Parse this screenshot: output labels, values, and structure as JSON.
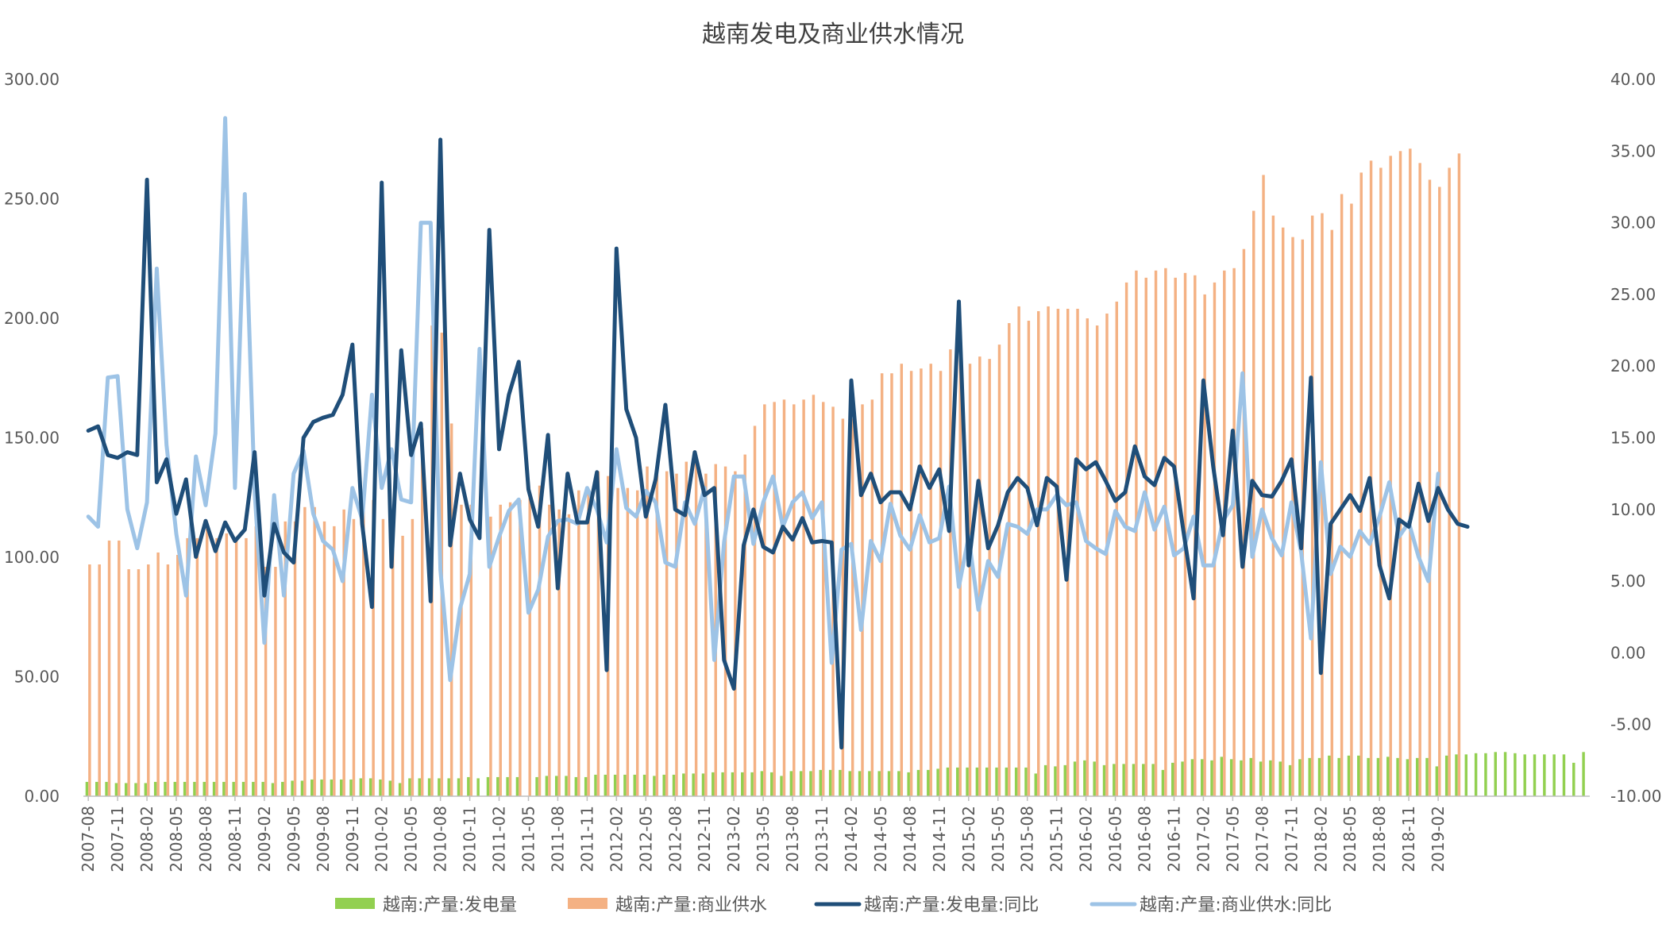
{
  "chart_data": {
    "type": "bar+line",
    "title": "越南发电及商业供水情况",
    "xlabel": "",
    "ylabel_left": "",
    "ylabel_right": "",
    "y_left_lim": [
      0,
      300
    ],
    "y_right_lim": [
      -10,
      40
    ],
    "y_left_ticks": [
      "0.00",
      "50.00",
      "100.00",
      "150.00",
      "200.00",
      "250.00",
      "300.00"
    ],
    "y_right_ticks": [
      "-10.00",
      "-5.00",
      "0.00",
      "5.00",
      "10.00",
      "15.00",
      "20.00",
      "25.00",
      "30.00",
      "35.00",
      "40.00"
    ],
    "x_tick_labels": [
      "2007-08",
      "2007-11",
      "2008-02",
      "2008-05",
      "2008-08",
      "2008-11",
      "2009-02",
      "2009-05",
      "2009-08",
      "2009-11",
      "2010-02",
      "2010-05",
      "2010-08",
      "2010-11",
      "2011-02",
      "2011-05",
      "2011-08",
      "2011-11",
      "2012-02",
      "2012-05",
      "2012-08",
      "2012-11",
      "2013-02",
      "2013-05",
      "2013-08",
      "2013-11",
      "2014-02",
      "2014-05",
      "2014-08",
      "2014-11",
      "2015-02",
      "2015-05",
      "2015-08",
      "2015-11",
      "2016-02",
      "2016-05",
      "2016-08",
      "2016-11",
      "2017-02",
      "2017-05",
      "2017-08",
      "2017-11",
      "2018-02",
      "2018-05",
      "2018-08",
      "2018-11",
      "2019-02"
    ],
    "grid": false,
    "legend_position": "bottom",
    "series": [
      {
        "name": "越南:产量:发电量",
        "type": "bar",
        "axis": "left",
        "color": "#92d050",
        "values": [
          6,
          6,
          6,
          5.5,
          5.5,
          5.5,
          5.5,
          6,
          6,
          6,
          6,
          6,
          6,
          6,
          6,
          6,
          6,
          6,
          6,
          5.5,
          6,
          6.5,
          6.5,
          7,
          7,
          7,
          7,
          7,
          7.5,
          7.5,
          7,
          6.5,
          5.5,
          7.5,
          7.5,
          7.5,
          7.5,
          7.5,
          7.5,
          8,
          7.5,
          8,
          8,
          8,
          8,
          null,
          8,
          8.5,
          8.5,
          8.5,
          8,
          8,
          9,
          9,
          9,
          9,
          9,
          9,
          8.5,
          9,
          9,
          9.5,
          9.5,
          9.5,
          10,
          10,
          10,
          10,
          10,
          10.5,
          10,
          8.5,
          10.5,
          10.5,
          10.5,
          11,
          11,
          11,
          10.5,
          10.5,
          10.5,
          10.5,
          10.5,
          10.5,
          10,
          11,
          11,
          11.5,
          12,
          12,
          12,
          12,
          12,
          12,
          12,
          12,
          12,
          9.5,
          13,
          12.5,
          13,
          14.5,
          15,
          14.5,
          13,
          13.5,
          13.5,
          13.5,
          13.5,
          13.5,
          11,
          14,
          14.5,
          15.5,
          15.5,
          15,
          16.5,
          15.5,
          15,
          16,
          14.5,
          15,
          14.5,
          13,
          15.5,
          16,
          16,
          17,
          16,
          17,
          17,
          16,
          16,
          16.5,
          16,
          15.5,
          16,
          16,
          12.5,
          17,
          17.5,
          17.5,
          18,
          18,
          18.5,
          18.5,
          18,
          17.5,
          17.5,
          17.5,
          17.5,
          17.5,
          14,
          18.5
        ]
      },
      {
        "name": "越南:产量:商业供水",
        "type": "bar",
        "axis": "left",
        "color": "#f4b183",
        "values": [
          97,
          97,
          107,
          107,
          95,
          95,
          97,
          102,
          97,
          101,
          108,
          108,
          112,
          108,
          110,
          108,
          108,
          113,
          96,
          96,
          115,
          115,
          121,
          121,
          115,
          113,
          120,
          116,
          124,
          124,
          116,
          109,
          109,
          116,
          154,
          197,
          194,
          156,
          122,
          122,
          null,
          117,
          122,
          123,
          124,
          125,
          130,
          122,
          120,
          118,
          128,
          128,
          136,
          134,
          129,
          129,
          128,
          138,
          135,
          136,
          135,
          140,
          140,
          135,
          139,
          138,
          136,
          143,
          155,
          164,
          165,
          166,
          164,
          166,
          168,
          165,
          163,
          158,
          158,
          164,
          166,
          177,
          177,
          181,
          178,
          179,
          181,
          178,
          187,
          191,
          181,
          184,
          183,
          189,
          198,
          205,
          199,
          203,
          205,
          204,
          204,
          204,
          200,
          197,
          202,
          207,
          215,
          220,
          217,
          220,
          221,
          217,
          219,
          218,
          210,
          215,
          220,
          221,
          229,
          245,
          260,
          243,
          238,
          234,
          233,
          243,
          244,
          237,
          252,
          248,
          261,
          266,
          263,
          268,
          270,
          271,
          265,
          258,
          255,
          263,
          269
        ]
      },
      {
        "name": "越南:产量:发电量:同比",
        "type": "line",
        "axis": "right",
        "color": "#1f4e79",
        "values": [
          15.5,
          15.8,
          13.8,
          13.6,
          14,
          13.8,
          33,
          11.9,
          13.5,
          9.7,
          12.1,
          6.7,
          9.2,
          7.1,
          9.1,
          7.8,
          8.6,
          14,
          4,
          9,
          7,
          6.3,
          15,
          16.1,
          16.4,
          16.6,
          18,
          21.5,
          9,
          3.2,
          32.8,
          6,
          21.1,
          13.8,
          16,
          3.6,
          35.8,
          7.5,
          12.5,
          9.3,
          8,
          29.5,
          14.2,
          18,
          20.3,
          11.4,
          8.8,
          15.2,
          4.5,
          12.5,
          9.1,
          9.1,
          12.6,
          -1.2,
          28.2,
          17,
          15,
          9.5,
          12.1,
          17.3,
          10,
          9.6,
          14,
          11,
          11.5,
          -0.5,
          -2.5,
          7.5,
          10,
          7.4,
          7,
          8.8,
          7.9,
          9.4,
          7.7,
          7.8,
          7.7,
          -6.6,
          19,
          11,
          12.5,
          10.5,
          11.2,
          11.2,
          10,
          13,
          11.5,
          12.8,
          8.5,
          24.5,
          6.1,
          12,
          7.3,
          8.9,
          11.2,
          12.2,
          11.5,
          8.9,
          12.2,
          11.6,
          5.1,
          13.5,
          12.8,
          13.3,
          12,
          10.6,
          11.2,
          14.4,
          12.3,
          11.7,
          13.6,
          13,
          8.3,
          3.8,
          19,
          13,
          8.2,
          15.5,
          6,
          12,
          11,
          10.9,
          12,
          13.5,
          7.3,
          19.2,
          -1.4,
          9,
          10,
          11,
          9.9,
          12.2,
          6.1,
          3.8,
          9.3,
          8.8,
          11.8,
          9.2,
          11.5,
          10,
          9,
          8.8
        ]
      },
      {
        "name": "越南:产量:商业供水:同比",
        "type": "line",
        "axis": "right",
        "color": "#9dc3e6",
        "values": [
          9.5,
          8.8,
          19.2,
          19.3,
          10,
          7.3,
          10.5,
          26.8,
          14.5,
          8.3,
          4,
          13.7,
          10.3,
          15.3,
          37.3,
          11.5,
          32,
          11.3,
          0.7,
          11,
          4,
          12.5,
          14.1,
          9.7,
          7.8,
          7.2,
          5,
          11.5,
          9.3,
          18,
          11.5,
          14.2,
          10.7,
          10.5,
          30,
          30,
          5.8,
          -1.9,
          3.1,
          5.5,
          21.2,
          6,
          8.1,
          9.9,
          10.7,
          2.8,
          4.4,
          8.1,
          9.2,
          9.3,
          9,
          11.5,
          10,
          7.7,
          14.2,
          10.1,
          9.5,
          11.3,
          10.5,
          6.3,
          6,
          10.5,
          9,
          11.5,
          -0.5,
          7.7,
          12.3,
          12.3,
          7.6,
          10.5,
          12.3,
          8.8,
          10.5,
          11.2,
          9.4,
          10.5,
          -0.7,
          7.2,
          7.6,
          1.6,
          7.8,
          6.4,
          10.4,
          8.2,
          7.2,
          9.6,
          7.7,
          8,
          11.6,
          4.6,
          8.1,
          3,
          6.4,
          5.3,
          9,
          8.8,
          8.3,
          10,
          10,
          11,
          10.3,
          10.5,
          7.8,
          7.3,
          6.9,
          9.9,
          8.8,
          8.5,
          11.2,
          8.6,
          10.2,
          6.8,
          7.3,
          9.5,
          6.1,
          6.1,
          9.2,
          10.3,
          19.5,
          6.7,
          10,
          8,
          6.8,
          10.5,
          7,
          1,
          13.3,
          5.5,
          7.4,
          6.7,
          8.5,
          7.6,
          9.5,
          11.9,
          8.1,
          9.1,
          6.7,
          5,
          12.5
        ]
      }
    ]
  }
}
